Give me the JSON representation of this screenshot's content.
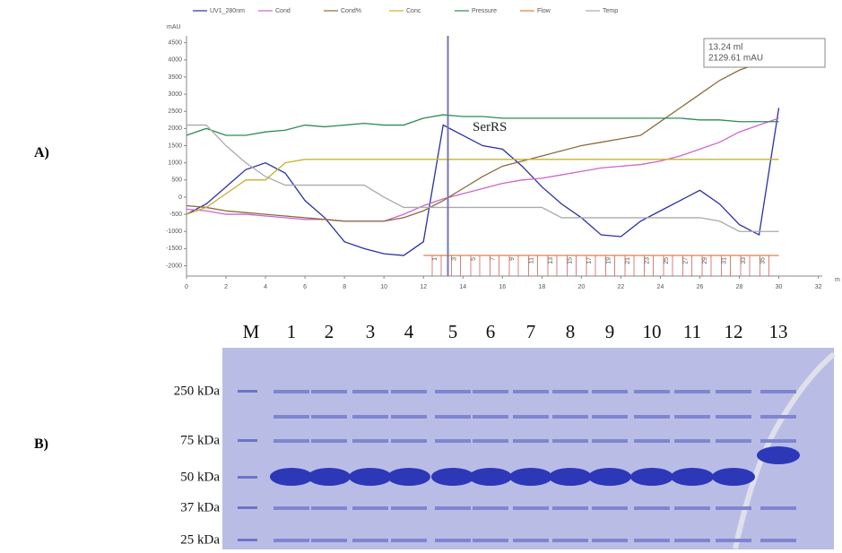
{
  "panel_labels": [
    "A)",
    "B)"
  ],
  "chart_data": {
    "type": "line",
    "y_label": "mAU",
    "x_label": "m",
    "x": [
      0,
      1,
      2,
      3,
      4,
      5,
      6,
      7,
      8,
      9,
      10,
      11,
      12,
      13,
      14,
      15,
      16,
      17,
      18,
      19,
      20,
      21,
      22,
      23,
      24,
      25,
      26,
      27,
      28,
      29,
      30
    ],
    "series": [
      {
        "name": "UV1_280nm",
        "color": "#2b2fa8",
        "values": [
          -500,
          -200,
          300,
          800,
          1000,
          700,
          -100,
          -600,
          -1300,
          -1500,
          -1650,
          -1700,
          -1300,
          2100,
          1800,
          1500,
          1400,
          900,
          300,
          -200,
          -600,
          -1100,
          -1150,
          -700,
          -400,
          -100,
          200,
          -200,
          -800,
          -1100,
          2600
        ]
      },
      {
        "name": "Cond",
        "color": "#cc66cc",
        "values": [
          -350,
          -400,
          -500,
          -500,
          -550,
          -600,
          -650,
          -650,
          -700,
          -700,
          -700,
          -500,
          -250,
          -50,
          100,
          250,
          400,
          500,
          550,
          650,
          750,
          850,
          900,
          950,
          1050,
          1200,
          1400,
          1600,
          1900,
          2100,
          2300
        ]
      },
      {
        "name": "Cond%",
        "color": "#8b6b3d",
        "values": [
          -250,
          -300,
          -400,
          -450,
          -500,
          -550,
          -600,
          -650,
          -700,
          -700,
          -700,
          -600,
          -400,
          -100,
          250,
          600,
          900,
          1050,
          1200,
          1350,
          1500,
          1600,
          1700,
          1800,
          2200,
          2600,
          3000,
          3400,
          3700,
          3900,
          4000
        ]
      },
      {
        "name": "Conc",
        "color": "#c8b030",
        "values": [
          -500,
          -300,
          100,
          500,
          500,
          1000,
          1100,
          1100,
          1100,
          1100,
          1100,
          1100,
          1100,
          1100,
          1100,
          1100,
          1100,
          1100,
          1100,
          1100,
          1100,
          1100,
          1100,
          1100,
          1100,
          1100,
          1100,
          1100,
          1100,
          1100,
          1100
        ]
      },
      {
        "name": "Pressure",
        "color": "#2e8b57",
        "values": [
          1800,
          2000,
          1800,
          1800,
          1900,
          1950,
          2100,
          2050,
          2100,
          2150,
          2100,
          2100,
          2300,
          2400,
          2350,
          2350,
          2300,
          2300,
          2300,
          2300,
          2300,
          2300,
          2300,
          2300,
          2300,
          2300,
          2250,
          2250,
          2200,
          2200,
          2200
        ]
      },
      {
        "name": "Flow",
        "color": "#e08040",
        "values": [
          null,
          null,
          null,
          null,
          null,
          null,
          null,
          null,
          null,
          null,
          null,
          null,
          -1700,
          -1700,
          -1700,
          -1700,
          -1700,
          -1700,
          -1700,
          -1700,
          -1700,
          -1700,
          -1700,
          -1700,
          -1700,
          -1700,
          -1700,
          -1700,
          -1700,
          -1700,
          -1700
        ]
      },
      {
        "name": "Temp",
        "color": "#aaaaaa",
        "values": [
          2100,
          2100,
          1500,
          1000,
          600,
          350,
          350,
          350,
          350,
          350,
          0,
          -300,
          -300,
          -300,
          -300,
          -300,
          -300,
          -300,
          -300,
          -600,
          -600,
          -600,
          -600,
          -600,
          -600,
          -600,
          -600,
          -700,
          -1000,
          -1000,
          -1000
        ]
      }
    ],
    "xlim": [
      0,
      32.2
    ],
    "xticks": [
      0,
      2,
      4,
      6,
      8,
      10,
      12,
      14,
      16,
      18,
      20,
      22,
      24,
      26,
      28,
      30,
      32
    ],
    "ylim": [
      -2300,
      4700
    ],
    "yticks": [
      -2000,
      -1500,
      -1000,
      -500,
      0,
      500,
      1000,
      1500,
      2000,
      2500,
      3000,
      3500,
      4000,
      4500
    ],
    "cursor_x": 13.24,
    "cursor_labels": [
      "13.24 ml",
      "2129.61 mAU"
    ],
    "annotation": "SerRS",
    "fractions": [
      "1",
      "3",
      "5",
      "7",
      "9",
      "11",
      "13",
      "15",
      "17",
      "19",
      "21",
      "23",
      "25",
      "27",
      "29",
      "31",
      "33",
      "35"
    ]
  },
  "gel": {
    "lanes": [
      "M",
      "1",
      "2",
      "3",
      "4",
      "5",
      "6",
      "7",
      "8",
      "9",
      "10",
      "11",
      "12",
      "13"
    ],
    "markers": [
      "250 kDa",
      "75 kDa",
      "50 kDa",
      "37 kDa",
      "25 kDa"
    ]
  }
}
